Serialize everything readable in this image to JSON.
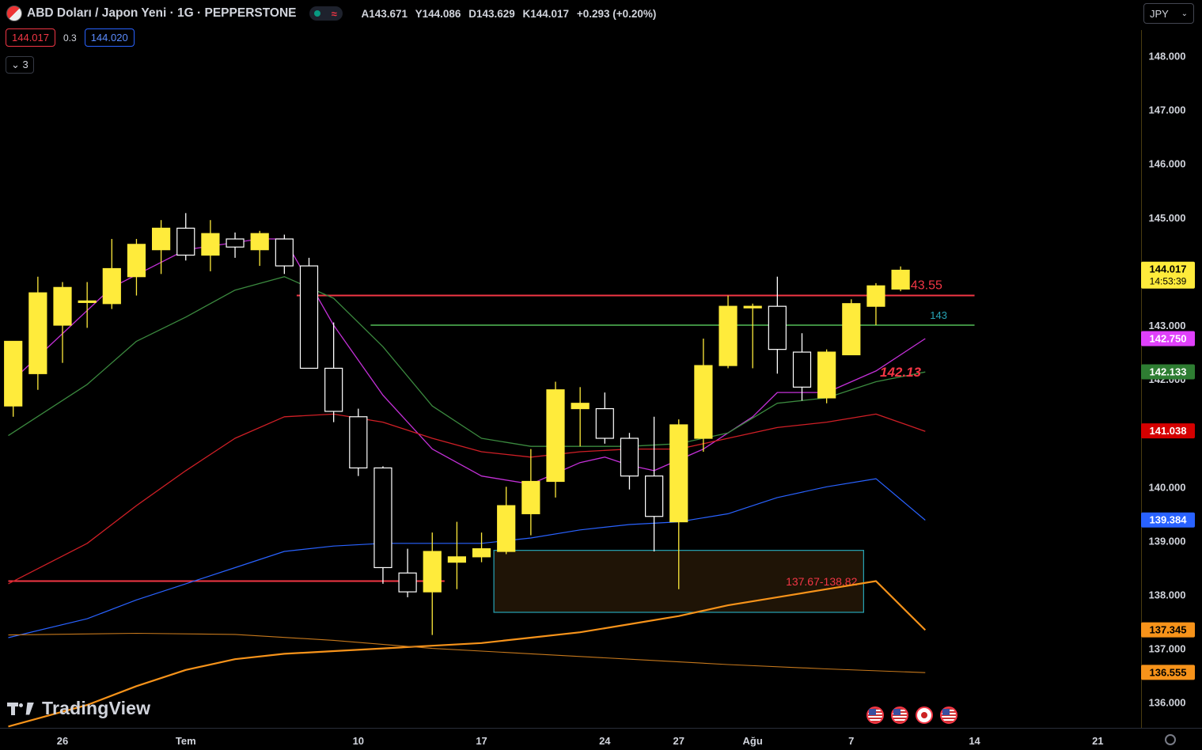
{
  "header": {
    "title": "ABD Doları / Japon Yeni · 1G · PEPPERSTONE",
    "ohlc": [
      {
        "label": "A",
        "value": "143.671"
      },
      {
        "label": "Y",
        "value": "144.086"
      },
      {
        "label": "D",
        "value": "143.629"
      },
      {
        "label": "K",
        "value": "144.017"
      },
      {
        "label": "",
        "value": "+0.293 (+0.20%)"
      }
    ],
    "sell_price": "144.017",
    "spread": "0.3",
    "buy_price": "144.020",
    "indicators_collapse": "3",
    "currency": "JPY",
    "logo_text": "TradingView"
  },
  "colors": {
    "bull": "#ffeb3b",
    "bear": "#ffffff",
    "ema_purple": "#c430d8",
    "ema_green": "#3b8a3f",
    "ema_red": "#d01f26",
    "ema_blue": "#2962ff",
    "ema_orange": "#f7931a",
    "ema_orange_thin": "#c6781c",
    "level_red": "#f23645",
    "level_green": "#3e8e41",
    "zone_border": "#26a4b6",
    "zone_fill": "#1f1406"
  },
  "chart_data": {
    "type": "candlestick",
    "yaxis_ticks": [
      "136.000",
      "137.000",
      "138.000",
      "139.000",
      "140.000",
      "141.000",
      "142.000",
      "143.000",
      "144.000",
      "145.000",
      "146.000",
      "147.000",
      "148.000"
    ],
    "ylim": [
      135.53,
      148.53
    ],
    "x_ticks": [
      {
        "label": "26",
        "x": 0
      },
      {
        "label": "Tem",
        "x": 5
      },
      {
        "label": "10",
        "x": 12
      },
      {
        "label": "17",
        "x": 17
      },
      {
        "label": "24",
        "x": 22
      },
      {
        "label": "27",
        "x": 25
      },
      {
        "label": "Ağu",
        "x": 28
      },
      {
        "label": "7",
        "x": 32
      },
      {
        "label": "14",
        "x": 37
      },
      {
        "label": "21",
        "x": 42
      }
    ],
    "candles": [
      {
        "x": -2,
        "o": 141.5,
        "h": 142.7,
        "l": 141.3,
        "c": 142.7
      },
      {
        "x": -1,
        "o": 142.1,
        "h": 143.9,
        "l": 141.8,
        "c": 143.6
      },
      {
        "x": 0,
        "o": 143.0,
        "h": 143.8,
        "l": 142.3,
        "c": 143.7
      },
      {
        "x": 1,
        "o": 143.45,
        "h": 143.8,
        "l": 142.95,
        "c": 143.45
      },
      {
        "x": 2,
        "o": 143.4,
        "h": 144.6,
        "l": 143.3,
        "c": 144.05
      },
      {
        "x": 3,
        "o": 143.9,
        "h": 144.6,
        "l": 143.55,
        "c": 144.5
      },
      {
        "x": 4,
        "o": 144.4,
        "h": 144.95,
        "l": 143.95,
        "c": 144.8
      },
      {
        "x": 5,
        "o": 144.8,
        "h": 145.08,
        "l": 144.2,
        "c": 144.3
      },
      {
        "x": 6,
        "o": 144.3,
        "h": 144.95,
        "l": 144.0,
        "c": 144.7
      },
      {
        "x": 7,
        "o": 144.6,
        "h": 144.72,
        "l": 144.25,
        "c": 144.45
      },
      {
        "x": 8,
        "o": 144.4,
        "h": 144.75,
        "l": 144.1,
        "c": 144.7
      },
      {
        "x": 9,
        "o": 144.6,
        "h": 144.68,
        "l": 143.95,
        "c": 144.1
      },
      {
        "x": 10,
        "o": 144.1,
        "h": 144.25,
        "l": 142.25,
        "c": 142.2
      },
      {
        "x": 11,
        "o": 142.2,
        "h": 143.05,
        "l": 141.2,
        "c": 141.4
      },
      {
        "x": 12,
        "o": 141.3,
        "h": 141.45,
        "l": 140.2,
        "c": 140.35
      },
      {
        "x": 13,
        "o": 140.35,
        "h": 140.38,
        "l": 138.2,
        "c": 138.5
      },
      {
        "x": 14,
        "o": 138.4,
        "h": 138.85,
        "l": 137.95,
        "c": 138.05
      },
      {
        "x": 15,
        "o": 138.05,
        "h": 139.15,
        "l": 137.25,
        "c": 138.8
      },
      {
        "x": 16,
        "o": 138.6,
        "h": 139.35,
        "l": 138.1,
        "c": 138.7
      },
      {
        "x": 17,
        "o": 138.7,
        "h": 139.15,
        "l": 138.6,
        "c": 138.85
      },
      {
        "x": 18,
        "o": 138.8,
        "h": 140.0,
        "l": 138.75,
        "c": 139.65
      },
      {
        "x": 19,
        "o": 139.5,
        "h": 140.7,
        "l": 139.1,
        "c": 140.1
      },
      {
        "x": 20,
        "o": 140.1,
        "h": 141.95,
        "l": 139.8,
        "c": 141.8
      },
      {
        "x": 21,
        "o": 141.45,
        "h": 141.85,
        "l": 140.75,
        "c": 141.55
      },
      {
        "x": 22,
        "o": 141.45,
        "h": 141.75,
        "l": 140.8,
        "c": 140.9
      },
      {
        "x": 23,
        "o": 140.9,
        "h": 141.0,
        "l": 139.95,
        "c": 140.2
      },
      {
        "x": 24,
        "o": 140.2,
        "h": 141.3,
        "l": 138.8,
        "c": 139.45
      },
      {
        "x": 25,
        "o": 139.35,
        "h": 141.25,
        "l": 138.1,
        "c": 141.15
      },
      {
        "x": 26,
        "o": 140.9,
        "h": 142.75,
        "l": 140.65,
        "c": 142.25
      },
      {
        "x": 27,
        "o": 142.25,
        "h": 143.55,
        "l": 142.2,
        "c": 143.35
      },
      {
        "x": 28,
        "o": 143.35,
        "h": 143.4,
        "l": 142.2,
        "c": 143.35
      },
      {
        "x": 29,
        "o": 143.35,
        "h": 143.9,
        "l": 142.1,
        "c": 142.55
      },
      {
        "x": 30,
        "o": 142.5,
        "h": 142.85,
        "l": 141.6,
        "c": 141.85
      },
      {
        "x": 31,
        "o": 141.65,
        "h": 142.55,
        "l": 141.55,
        "c": 142.5
      },
      {
        "x": 32,
        "o": 142.45,
        "h": 143.48,
        "l": 142.45,
        "c": 143.4
      },
      {
        "x": 33,
        "o": 143.35,
        "h": 143.78,
        "l": 143.0,
        "c": 143.73
      },
      {
        "x": 34,
        "o": 143.67,
        "h": 144.09,
        "l": 143.63,
        "c": 144.02
      }
    ],
    "moving_averages": [
      {
        "label": "142.750",
        "color": "#c430d8",
        "width": 1.3,
        "points": [
          [
            -2.2,
            141.9
          ],
          [
            2,
            143.7
          ],
          [
            5,
            144.4
          ],
          [
            8,
            144.6
          ],
          [
            9,
            144.6
          ],
          [
            11,
            143.0
          ],
          [
            13,
            141.7
          ],
          [
            15,
            140.7
          ],
          [
            17,
            140.2
          ],
          [
            19,
            140.05
          ],
          [
            21,
            140.45
          ],
          [
            22,
            140.55
          ],
          [
            23,
            140.4
          ],
          [
            24,
            140.3
          ],
          [
            26,
            140.7
          ],
          [
            28,
            141.3
          ],
          [
            29,
            141.75
          ],
          [
            31,
            141.75
          ],
          [
            33,
            142.15
          ],
          [
            35,
            142.75
          ]
        ]
      },
      {
        "label": "142.133",
        "color": "#3b8a3f",
        "width": 1.3,
        "points": [
          [
            -2.2,
            140.95
          ],
          [
            1,
            141.9
          ],
          [
            3,
            142.7
          ],
          [
            5,
            143.15
          ],
          [
            7,
            143.65
          ],
          [
            9,
            143.9
          ],
          [
            11,
            143.5
          ],
          [
            13,
            142.6
          ],
          [
            15,
            141.5
          ],
          [
            17,
            140.9
          ],
          [
            19,
            140.75
          ],
          [
            21,
            140.75
          ],
          [
            23,
            140.75
          ],
          [
            25,
            140.8
          ],
          [
            27,
            141.0
          ],
          [
            29,
            141.55
          ],
          [
            31,
            141.65
          ],
          [
            33,
            141.95
          ],
          [
            35,
            142.13
          ]
        ]
      },
      {
        "label": "141.038",
        "color": "#d01f26",
        "width": 1.3,
        "points": [
          [
            -2.2,
            138.2
          ],
          [
            1,
            138.95
          ],
          [
            3,
            139.65
          ],
          [
            5,
            140.3
          ],
          [
            7,
            140.9
          ],
          [
            9,
            141.3
          ],
          [
            11,
            141.35
          ],
          [
            13,
            141.2
          ],
          [
            15,
            140.9
          ],
          [
            17,
            140.65
          ],
          [
            19,
            140.55
          ],
          [
            21,
            140.65
          ],
          [
            23,
            140.7
          ],
          [
            25,
            140.7
          ],
          [
            27,
            140.9
          ],
          [
            29,
            141.1
          ],
          [
            31,
            141.2
          ],
          [
            33,
            141.35
          ],
          [
            35,
            141.03
          ]
        ]
      },
      {
        "label": "139.384",
        "color": "#2962ff",
        "width": 1.2,
        "points": [
          [
            -2.2,
            137.2
          ],
          [
            1,
            137.55
          ],
          [
            3,
            137.9
          ],
          [
            5,
            138.2
          ],
          [
            7,
            138.5
          ],
          [
            9,
            138.8
          ],
          [
            11,
            138.9
          ],
          [
            13,
            138.95
          ],
          [
            15,
            138.95
          ],
          [
            17,
            138.95
          ],
          [
            19,
            139.05
          ],
          [
            21,
            139.2
          ],
          [
            23,
            139.3
          ],
          [
            25,
            139.35
          ],
          [
            27,
            139.5
          ],
          [
            29,
            139.8
          ],
          [
            31,
            140.0
          ],
          [
            33,
            140.15
          ],
          [
            35,
            139.38
          ]
        ]
      },
      {
        "label": "137.345",
        "color": "#f7931a",
        "width": 2.2,
        "points": [
          [
            -2.2,
            135.55
          ],
          [
            1,
            135.95
          ],
          [
            3,
            136.3
          ],
          [
            5,
            136.6
          ],
          [
            7,
            136.8
          ],
          [
            9,
            136.9
          ],
          [
            11,
            136.95
          ],
          [
            13,
            137.0
          ],
          [
            15,
            137.05
          ],
          [
            17,
            137.1
          ],
          [
            19,
            137.2
          ],
          [
            21,
            137.3
          ],
          [
            23,
            137.45
          ],
          [
            25,
            137.6
          ],
          [
            27,
            137.8
          ],
          [
            29,
            137.95
          ],
          [
            31,
            138.1
          ],
          [
            33,
            138.25
          ],
          [
            35,
            137.34
          ]
        ]
      },
      {
        "label": "136.555",
        "color": "#c6781c",
        "width": 1.1,
        "points": [
          [
            -2.2,
            137.25
          ],
          [
            3,
            137.28
          ],
          [
            7,
            137.26
          ],
          [
            11,
            137.15
          ],
          [
            15,
            137.0
          ],
          [
            19,
            136.9
          ],
          [
            23,
            136.8
          ],
          [
            27,
            136.7
          ],
          [
            31,
            136.62
          ],
          [
            35,
            136.55
          ]
        ]
      }
    ],
    "levels": [
      {
        "name": "143.55",
        "y": 143.55,
        "color": "#f23645",
        "x1": 9.5,
        "x2": 37
      },
      {
        "name": "143",
        "y": 143.0,
        "color": "#3e8e41",
        "x1": 12.5,
        "x2": 37
      },
      {
        "name": "",
        "y": 138.25,
        "color": "#f23645",
        "x1": -2.2,
        "x2": 15.5
      }
    ],
    "annotations": [
      {
        "text": "142.13",
        "x": 35.2,
        "y": 142.13
      }
    ],
    "zone": {
      "label": "137.67-138.82",
      "y_low": 137.67,
      "y_high": 138.82,
      "x1": 17.5,
      "x2": 32.5
    },
    "price_labels": [
      {
        "value": "144.017",
        "sub": "14:53:39",
        "bg": "#ffeb3b",
        "fg": "#000000"
      },
      {
        "value": "142.750",
        "bg": "#e040fb",
        "fg": "#ffffff"
      },
      {
        "value": "142.133",
        "bg": "#2e7d32",
        "fg": "#ffffff"
      },
      {
        "value": "141.038",
        "bg": "#d50000",
        "fg": "#ffffff"
      },
      {
        "value": "139.384",
        "bg": "#2962ff",
        "fg": "#ffffff"
      },
      {
        "value": "137.345",
        "bg": "#f7931a",
        "fg": "#000000"
      },
      {
        "value": "136.555",
        "bg": "#f7931a",
        "fg": "#000000"
      }
    ]
  }
}
